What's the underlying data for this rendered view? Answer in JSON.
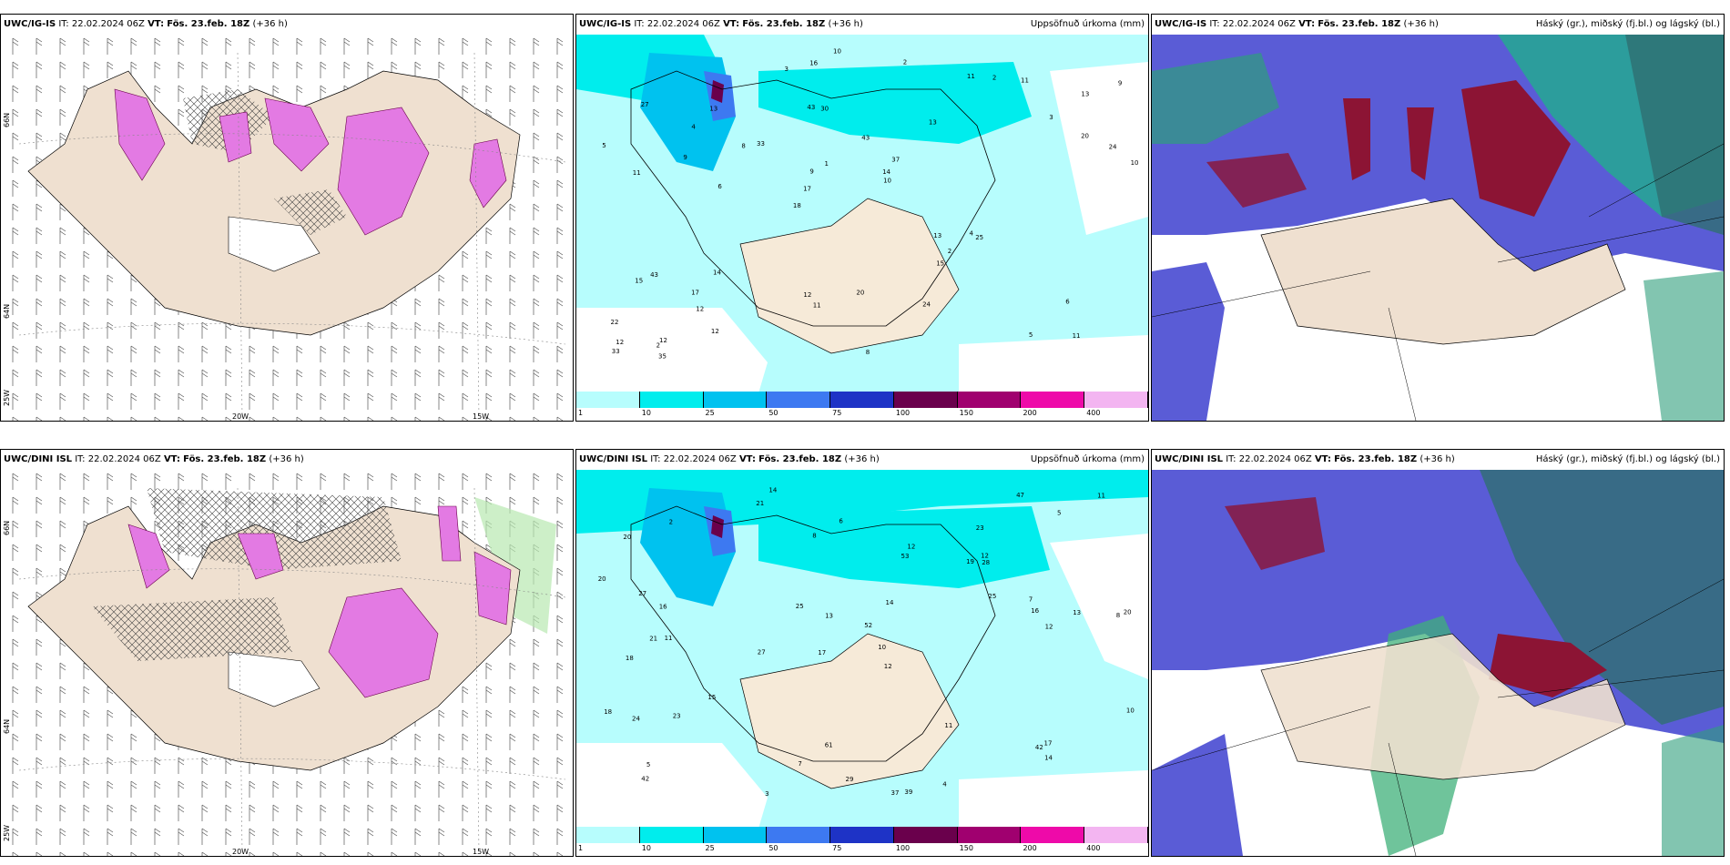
{
  "rows": [
    {
      "model": "UWC/IG-IS",
      "it_label": "IT:",
      "it_value": "22.02.2024 06Z",
      "vt_label": "VT:",
      "vt_value": "Fös. 23.feb. 18Z",
      "lead": "(+36 h)"
    },
    {
      "model": "UWC/DINI ISL",
      "it_label": "IT:",
      "it_value": "22.02.2024 06Z",
      "vt_label": "VT:",
      "vt_value": "Fös. 23.feb. 18Z",
      "lead": "(+36 h)"
    }
  ],
  "panel_titles": {
    "precip": "Uppsöfnuð úrkoma (mm)",
    "clouds": "Háský (gr.), miðský (fj.bl.) og lágský (bl.)"
  },
  "axis_labels": {
    "lat66": "66N",
    "lat64": "64N",
    "lon25": "25W",
    "lon20": "20W",
    "lon15": "15W"
  },
  "colorbar": {
    "labels": [
      "1",
      "10",
      "25",
      "50",
      "75",
      "100",
      "150",
      "200",
      "400"
    ],
    "colors": [
      "#b7fdfd",
      "#00eded",
      "#00c2ef",
      "#3d79f1",
      "#1e33c6",
      "#6a004c",
      "#a0006f",
      "#ee0aa9",
      "#f3b5f1"
    ]
  },
  "colors": {
    "land": "#efe0d0",
    "precip_light": "#b7fdfd",
    "precip_pink": "#e37ae3",
    "cloud_blue": "#5a5cd6",
    "cloud_green": "#1db388",
    "cloud_red": "#8c1434"
  },
  "precip_values_top": [
    "11",
    "11",
    "13",
    "18",
    "13",
    "12",
    "43",
    "43",
    "43",
    "33",
    "22",
    "12",
    "30",
    "37",
    "25",
    "27",
    "16",
    "10",
    "13",
    "20",
    "17",
    "12",
    "9",
    "13",
    "11",
    "14",
    "5",
    "6",
    "4",
    "8",
    "8",
    "9",
    "15",
    "12",
    "24",
    "14",
    "12",
    "11",
    "10",
    "15",
    "3",
    "9",
    "2",
    "24",
    "17",
    "35",
    "33",
    "20",
    "11",
    "10",
    "6",
    "5",
    "4",
    "2",
    "2",
    "2",
    "3",
    "1"
  ],
  "precip_values_bottom": [
    "14",
    "23",
    "8",
    "17",
    "12",
    "11",
    "20",
    "19",
    "18",
    "53",
    "52",
    "42",
    "21",
    "27",
    "37",
    "39",
    "61",
    "47",
    "25",
    "15",
    "16",
    "21",
    "20",
    "13",
    "18",
    "27",
    "13",
    "16",
    "17",
    "24",
    "42",
    "12",
    "23",
    "25",
    "11",
    "10",
    "7",
    "7",
    "11",
    "6",
    "5",
    "3",
    "4",
    "2",
    "29",
    "28",
    "14",
    "12",
    "20",
    "10",
    "8",
    "12",
    "14",
    "5"
  ]
}
